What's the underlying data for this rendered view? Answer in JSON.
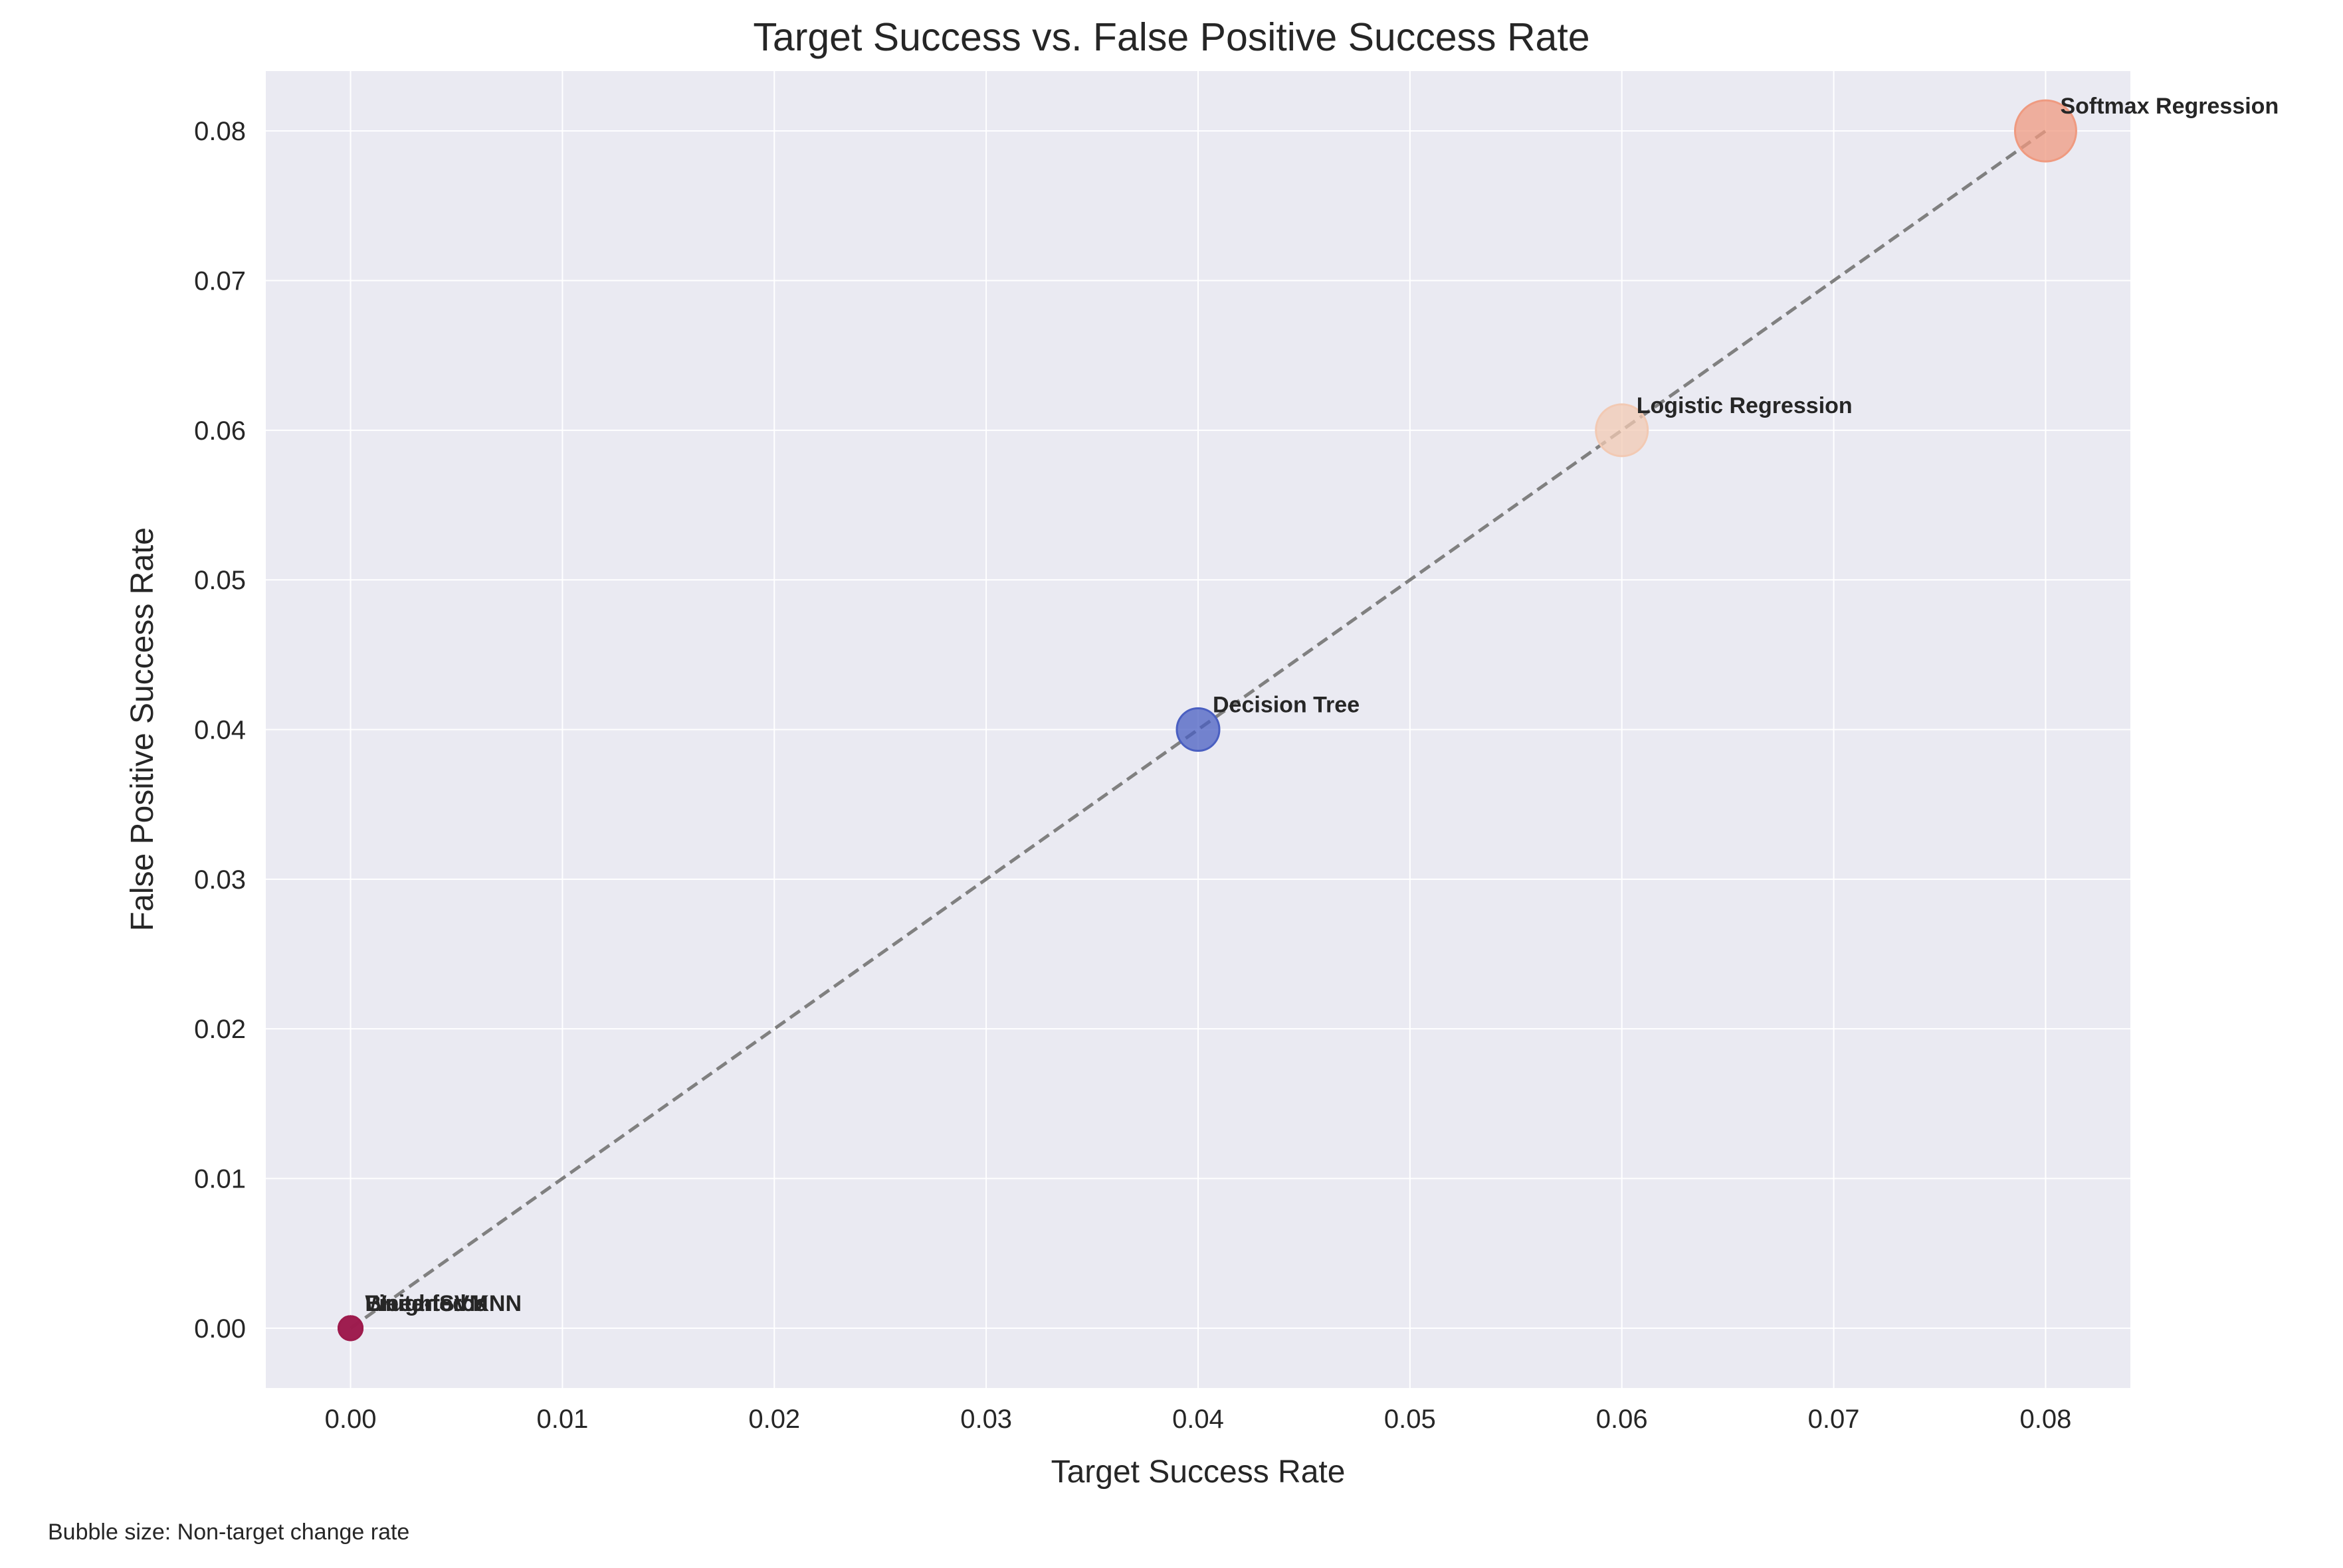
{
  "chart_data": {
    "type": "scatter",
    "title": "Target Success vs. False Positive Success Rate",
    "xlabel": "Target Success Rate",
    "ylabel": "False Positive Success Rate",
    "xlim": [
      -0.004,
      0.084
    ],
    "ylim": [
      -0.004,
      0.084
    ],
    "xticks": [
      "0.00",
      "0.01",
      "0.02",
      "0.03",
      "0.04",
      "0.05",
      "0.06",
      "0.07",
      "0.08"
    ],
    "yticks": [
      "0.00",
      "0.01",
      "0.02",
      "0.03",
      "0.04",
      "0.05",
      "0.06",
      "0.07",
      "0.08"
    ],
    "grid": true,
    "background_color": "#eaeaf2",
    "diagonal_line": {
      "from": [
        0,
        0
      ],
      "to": [
        0.08,
        0.08
      ],
      "style": "dashed",
      "color": "#808080"
    },
    "points": [
      {
        "label": "Brute-force",
        "x": 0.0,
        "y": 0.0,
        "color": "#9e1b4d"
      },
      {
        "label": "Linear SVM",
        "x": 0.0,
        "y": 0.0,
        "color": "#9e1b4d"
      },
      {
        "label": "Weighted KNN",
        "x": 0.0,
        "y": 0.0,
        "color": "#9e1b4d"
      },
      {
        "label": "Decision Tree",
        "x": 0.04,
        "y": 0.04,
        "color": "#4a5fc1"
      },
      {
        "label": "Logistic Regression",
        "x": 0.06,
        "y": 0.06,
        "color": "#f2c9b3"
      },
      {
        "label": "Softmax Regression",
        "x": 0.08,
        "y": 0.08,
        "color": "#ef9a80"
      }
    ],
    "footnote": "Bubble size: Non-target change rate"
  }
}
